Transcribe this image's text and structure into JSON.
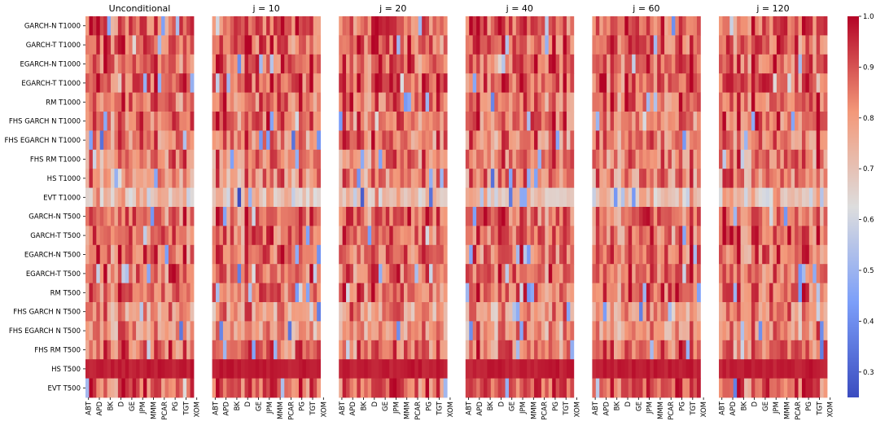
{
  "chart_data": {
    "type": "heatmap",
    "colormap": "coolwarm",
    "color_range": [
      0.25,
      1.0
    ],
    "colorbar_ticks": [
      "0.3",
      "0.4",
      "0.5",
      "0.6",
      "0.7",
      "0.8",
      "0.9",
      "1.0"
    ],
    "colorbar_tick_values": [
      0.3,
      0.4,
      0.5,
      0.6,
      0.7,
      0.8,
      0.9,
      1.0
    ],
    "rows": [
      "GARCH-N T1000",
      "GARCH-T T1000",
      "EGARCH-N T1000",
      "EGARCH-T T1000",
      "RM T1000",
      "FHS GARCH N T1000",
      "FHS EGARCH N T1000",
      "FHS RM T1000",
      "HS T1000",
      "EVT T1000",
      "GARCH-N T500",
      "GARCH-T T500",
      "EGARCH-N T500",
      "EGARCH-T T500",
      "RM T500",
      "FHS GARCH N T500",
      "FHS EGARCH N T500",
      "FHS RM T500",
      "HS T500",
      "EVT T500"
    ],
    "x_tick_labels": [
      "ABT",
      "APD",
      "BK",
      "D",
      "GE",
      "JPM",
      "MMM",
      "PCAR",
      "PG",
      "TGT",
      "XOM"
    ],
    "num_columns": 30,
    "panels": [
      {
        "title": "Unconditional"
      },
      {
        "title": "j = 10"
      },
      {
        "title": "j = 20"
      },
      {
        "title": "j = 40"
      },
      {
        "title": "j = 60"
      },
      {
        "title": "j = 120"
      }
    ],
    "row_levels": [
      0.88,
      0.88,
      0.88,
      0.88,
      0.86,
      0.86,
      0.84,
      0.84,
      0.82,
      0.7,
      0.86,
      0.86,
      0.86,
      0.86,
      0.86,
      0.8,
      0.8,
      0.86,
      0.98,
      0.88
    ]
  }
}
